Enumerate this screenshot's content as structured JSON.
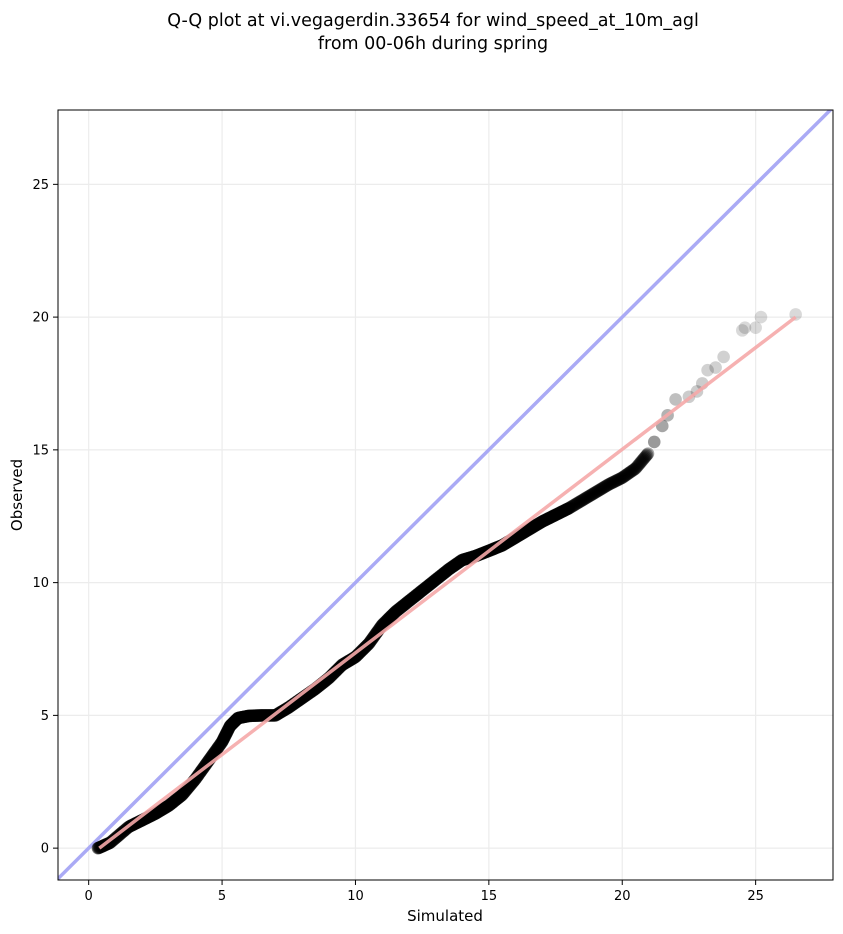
{
  "chart_data": {
    "type": "scatter",
    "title_lines": [
      "Q-Q plot at vi.vegagerdin.33654 for wind_speed_at_10m_agl",
      "from 00-06h during spring"
    ],
    "xlabel": "Simulated",
    "ylabel": "Observed",
    "xlim": [
      -1.15,
      27.9
    ],
    "ylim": [
      -1.2,
      27.8
    ],
    "xticks": [
      0,
      5,
      10,
      15,
      20,
      25
    ],
    "yticks": [
      0,
      5,
      10,
      15,
      20,
      25
    ],
    "grid": true,
    "colors": {
      "points": "#000000",
      "identity_line": "#aaaaf5",
      "fit_line": "#f5a8a8",
      "grid": "#ececec"
    },
    "identity_line": {
      "x": [
        -1.15,
        27.9
      ],
      "y": [
        -1.15,
        27.9
      ]
    },
    "fit_line": {
      "x": [
        0.4,
        26.5
      ],
      "y": [
        0.0,
        20.0
      ]
    },
    "points_curve": {
      "x": [
        0.35,
        0.8,
        1.5,
        2.0,
        2.5,
        3.0,
        3.5,
        4.0,
        4.5,
        5.0,
        5.3,
        5.6,
        6.0,
        6.5,
        7.0,
        7.5,
        8.0,
        8.5,
        9.0,
        9.5,
        10.0,
        10.5,
        11.0,
        11.5,
        12.0,
        12.5,
        13.0,
        13.5,
        14.0,
        14.5,
        15.0,
        15.5,
        16.0,
        16.5,
        17.0,
        17.5,
        18.0,
        18.5,
        19.0,
        19.5,
        20.0,
        20.5,
        21.0
      ],
      "y": [
        0.0,
        0.2,
        0.8,
        1.05,
        1.3,
        1.6,
        2.0,
        2.6,
        3.3,
        4.0,
        4.6,
        4.9,
        4.98,
        5.0,
        5.0,
        5.3,
        5.65,
        6.0,
        6.4,
        6.9,
        7.2,
        7.7,
        8.4,
        8.9,
        9.3,
        9.7,
        10.1,
        10.5,
        10.85,
        11.0,
        11.2,
        11.4,
        11.7,
        12.0,
        12.3,
        12.55,
        12.8,
        13.1,
        13.4,
        13.7,
        13.95,
        14.3,
        14.9
      ]
    },
    "tail_points": [
      {
        "x": 21.2,
        "y": 15.3,
        "a": 0.4
      },
      {
        "x": 21.5,
        "y": 15.9,
        "a": 0.35
      },
      {
        "x": 21.7,
        "y": 16.3,
        "a": 0.3
      },
      {
        "x": 22.0,
        "y": 16.9,
        "a": 0.25
      },
      {
        "x": 22.5,
        "y": 17.0,
        "a": 0.2
      },
      {
        "x": 22.8,
        "y": 17.2,
        "a": 0.2
      },
      {
        "x": 23.0,
        "y": 17.5,
        "a": 0.2
      },
      {
        "x": 23.2,
        "y": 18.0,
        "a": 0.18
      },
      {
        "x": 23.5,
        "y": 18.1,
        "a": 0.18
      },
      {
        "x": 23.8,
        "y": 18.5,
        "a": 0.18
      },
      {
        "x": 24.5,
        "y": 19.5,
        "a": 0.15
      },
      {
        "x": 24.6,
        "y": 19.6,
        "a": 0.15
      },
      {
        "x": 25.0,
        "y": 19.6,
        "a": 0.15
      },
      {
        "x": 25.2,
        "y": 20.0,
        "a": 0.15
      },
      {
        "x": 26.5,
        "y": 20.1,
        "a": 0.15
      }
    ]
  }
}
